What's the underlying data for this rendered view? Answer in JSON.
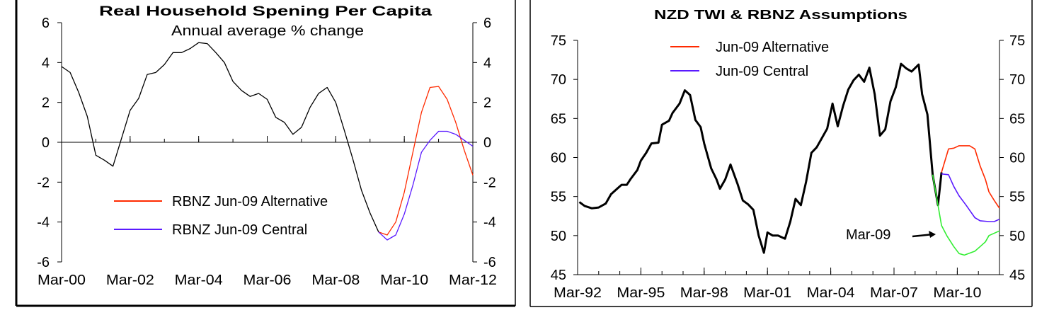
{
  "chart_data": [
    {
      "type": "line",
      "title": "Real Household Spening Per Capita",
      "subtitle": "Annual average % change",
      "xlim": [
        "2000-03",
        "2012-03"
      ],
      "ylim": [
        -6,
        6
      ],
      "y_ticks": [
        6,
        4,
        2,
        0,
        -2,
        -4,
        -6
      ],
      "y_tick_labels": [
        "6",
        "4",
        "2",
        "0",
        "-2",
        "-4",
        "-6"
      ],
      "secondary_y_ticks": [
        "6",
        "4",
        "2",
        "0",
        "-2",
        "-4",
        "-6"
      ],
      "x_ticks": [
        {
          "date": "2000-03",
          "label": "Mar-00"
        },
        {
          "date": "2002-03",
          "label": "Mar-02"
        },
        {
          "date": "2004-03",
          "label": "Mar-04"
        },
        {
          "date": "2006-03",
          "label": "Mar-06"
        },
        {
          "date": "2008-03",
          "label": "Mar-08"
        },
        {
          "date": "2010-03",
          "label": "Mar-10"
        },
        {
          "date": "2012-03",
          "label": "Mar-12"
        }
      ],
      "grid": false,
      "zero_line": true,
      "legend_position": "bottom-left",
      "series": [
        {
          "color": "#000000",
          "points": [
            [
              "2000-03",
              3.8
            ],
            [
              "2000-06",
              3.5
            ],
            [
              "2000-09",
              2.5
            ],
            [
              "2000-12",
              1.3
            ],
            [
              "2001-03",
              -0.65
            ],
            [
              "2001-06",
              -0.9
            ],
            [
              "2001-09",
              -1.2
            ],
            [
              "2001-12",
              0.2
            ],
            [
              "2002-03",
              1.6
            ],
            [
              "2002-06",
              2.2
            ],
            [
              "2002-09",
              3.4
            ],
            [
              "2002-12",
              3.5
            ],
            [
              "2003-03",
              3.9
            ],
            [
              "2003-06",
              4.5
            ],
            [
              "2003-09",
              4.5
            ],
            [
              "2003-12",
              4.7
            ],
            [
              "2004-03",
              5.0
            ],
            [
              "2004-06",
              4.95
            ],
            [
              "2004-09",
              4.5
            ],
            [
              "2004-12",
              4.0
            ],
            [
              "2005-03",
              3.05
            ],
            [
              "2005-06",
              2.6
            ],
            [
              "2005-09",
              2.3
            ],
            [
              "2005-12",
              2.45
            ],
            [
              "2006-03",
              2.15
            ],
            [
              "2006-06",
              1.25
            ],
            [
              "2006-09",
              1.0
            ],
            [
              "2006-12",
              0.4
            ],
            [
              "2007-03",
              0.75
            ],
            [
              "2007-06",
              1.75
            ],
            [
              "2007-09",
              2.45
            ],
            [
              "2007-12",
              2.75
            ],
            [
              "2008-03",
              2.0
            ],
            [
              "2008-06",
              0.6
            ],
            [
              "2008-09",
              -0.85
            ],
            [
              "2008-12",
              -2.4
            ],
            [
              "2009-03",
              -3.55
            ],
            [
              "2009-06",
              -4.5
            ]
          ]
        },
        {
          "name": "RBNZ Jun-09 Alternative",
          "color": "#ff2a00",
          "points": [
            [
              "2009-06",
              -4.5
            ],
            [
              "2009-09",
              -4.65
            ],
            [
              "2009-12",
              -4.0
            ],
            [
              "2010-03",
              -2.5
            ],
            [
              "2010-06",
              -0.5
            ],
            [
              "2010-09",
              1.5
            ],
            [
              "2010-12",
              2.75
            ],
            [
              "2011-03",
              2.8
            ],
            [
              "2011-06",
              2.15
            ],
            [
              "2011-09",
              1.0
            ],
            [
              "2011-12",
              -0.4
            ],
            [
              "2012-03",
              -1.65
            ]
          ]
        },
        {
          "name": "RBNZ Jun-09 Central",
          "color": "#5a1aff",
          "points": [
            [
              "2009-06",
              -4.5
            ],
            [
              "2009-09",
              -4.9
            ],
            [
              "2009-12",
              -4.65
            ],
            [
              "2010-03",
              -3.6
            ],
            [
              "2010-06",
              -2.15
            ],
            [
              "2010-09",
              -0.5
            ],
            [
              "2010-12",
              0.1
            ],
            [
              "2011-03",
              0.55
            ],
            [
              "2011-06",
              0.55
            ],
            [
              "2011-09",
              0.4
            ],
            [
              "2011-12",
              0.1
            ],
            [
              "2012-03",
              -0.2
            ]
          ]
        }
      ]
    },
    {
      "type": "line",
      "title": "NZD TWI & RBNZ Assumptions",
      "xlim": [
        "1992-03",
        "2012-03"
      ],
      "ylim": [
        45,
        75
      ],
      "y_ticks": [
        75,
        70,
        65,
        60,
        55,
        50,
        45
      ],
      "y_tick_labels": [
        "75",
        "70",
        "65",
        "60",
        "55",
        "50",
        "45"
      ],
      "secondary_y_ticks": [
        "75",
        "70",
        "65",
        "60",
        "55",
        "50",
        "45"
      ],
      "x_ticks": [
        {
          "date": "1992-03",
          "label": "Mar-92"
        },
        {
          "date": "1995-03",
          "label": "Mar-95"
        },
        {
          "date": "1998-03",
          "label": "Mar-98"
        },
        {
          "date": "2001-03",
          "label": "Mar-01"
        },
        {
          "date": "2004-03",
          "label": "Mar-04"
        },
        {
          "date": "2007-03",
          "label": "Mar-07"
        },
        {
          "date": "2010-03",
          "label": "Mar-10"
        }
      ],
      "grid": false,
      "legend_position": "top-left",
      "annotation": {
        "text": "Mar-09",
        "arrow": "right"
      },
      "series": [
        {
          "color": "#000000",
          "points": [
            [
              "1992-04",
              54.3
            ],
            [
              "1992-07",
              53.8
            ],
            [
              "1992-11",
              53.5
            ],
            [
              "1993-03",
              53.6
            ],
            [
              "1993-07",
              54.1
            ],
            [
              "1993-10",
              55.3
            ],
            [
              "1994-02",
              56.1
            ],
            [
              "1994-04",
              56.5
            ],
            [
              "1994-07",
              56.5
            ],
            [
              "1994-09",
              57.2
            ],
            [
              "1995-01",
              58.4
            ],
            [
              "1995-03",
              59.6
            ],
            [
              "1995-06",
              60.6
            ],
            [
              "1995-09",
              61.8
            ],
            [
              "1996-01",
              61.9
            ],
            [
              "1996-03",
              64.2
            ],
            [
              "1996-07",
              64.7
            ],
            [
              "1996-09",
              65.7
            ],
            [
              "1997-01",
              66.9
            ],
            [
              "1997-04",
              68.6
            ],
            [
              "1997-07",
              68.0
            ],
            [
              "1997-10",
              64.8
            ],
            [
              "1998-01",
              63.9
            ],
            [
              "1998-03",
              61.8
            ],
            [
              "1998-07",
              58.6
            ],
            [
              "1998-10",
              57.2
            ],
            [
              "1998-12",
              56.0
            ],
            [
              "1999-03",
              57.2
            ],
            [
              "1999-06",
              59.1
            ],
            [
              "1999-10",
              56.6
            ],
            [
              "2000-01",
              54.5
            ],
            [
              "2000-04",
              54.0
            ],
            [
              "2000-07",
              53.3
            ],
            [
              "2000-10",
              50.0
            ],
            [
              "2001-01",
              47.8
            ],
            [
              "2001-03",
              50.4
            ],
            [
              "2001-06",
              50.0
            ],
            [
              "2001-09",
              50.0
            ],
            [
              "2002-01",
              49.6
            ],
            [
              "2002-04",
              51.8
            ],
            [
              "2002-07",
              54.7
            ],
            [
              "2002-10",
              53.9
            ],
            [
              "2003-01",
              56.9
            ],
            [
              "2003-04",
              60.6
            ],
            [
              "2003-07",
              61.3
            ],
            [
              "2003-10",
              62.5
            ],
            [
              "2004-01",
              63.7
            ],
            [
              "2004-04",
              66.9
            ],
            [
              "2004-07",
              64.0
            ],
            [
              "2004-10",
              66.6
            ],
            [
              "2005-01",
              68.7
            ],
            [
              "2005-04",
              69.9
            ],
            [
              "2005-07",
              70.6
            ],
            [
              "2005-10",
              69.7
            ],
            [
              "2006-01",
              71.5
            ],
            [
              "2006-04",
              68.1
            ],
            [
              "2006-07",
              62.8
            ],
            [
              "2006-10",
              63.6
            ],
            [
              "2007-01",
              67.2
            ],
            [
              "2007-04",
              69.0
            ],
            [
              "2007-07",
              72.0
            ],
            [
              "2007-10",
              71.4
            ],
            [
              "2008-01",
              71.0
            ],
            [
              "2008-05",
              71.9
            ],
            [
              "2008-07",
              68.1
            ],
            [
              "2008-10",
              65.5
            ],
            [
              "2009-01",
              57.8
            ],
            [
              "2009-04",
              53.9
            ],
            [
              "2009-06",
              58.1
            ]
          ]
        },
        {
          "name": "Jun-09 Alternative",
          "color": "#ff2a00",
          "points": [
            [
              "2009-06",
              58.1
            ],
            [
              "2009-10",
              61.1
            ],
            [
              "2010-01",
              61.2
            ],
            [
              "2010-04",
              61.5
            ],
            [
              "2010-10",
              61.5
            ],
            [
              "2011-01",
              61.1
            ],
            [
              "2011-04",
              58.9
            ],
            [
              "2011-07",
              57.2
            ],
            [
              "2011-09",
              55.6
            ],
            [
              "2011-12",
              54.5
            ],
            [
              "2012-03",
              53.5
            ]
          ]
        },
        {
          "name": "Jun-09 Central",
          "color": "#5a1aff",
          "points": [
            [
              "2009-06",
              57.9
            ],
            [
              "2009-10",
              57.8
            ],
            [
              "2010-01",
              56.3
            ],
            [
              "2010-04",
              55.1
            ],
            [
              "2010-08",
              53.9
            ],
            [
              "2011-01",
              52.3
            ],
            [
              "2011-04",
              51.9
            ],
            [
              "2011-09",
              51.8
            ],
            [
              "2011-12",
              51.8
            ],
            [
              "2012-03",
              52.1
            ]
          ]
        },
        {
          "color": "#33ee33",
          "points": [
            [
              "2009-01",
              57.8
            ],
            [
              "2009-04",
              53.9
            ],
            [
              "2009-06",
              51.3
            ],
            [
              "2009-09",
              50.0
            ],
            [
              "2010-01",
              48.6
            ],
            [
              "2010-04",
              47.7
            ],
            [
              "2010-07",
              47.5
            ],
            [
              "2011-01",
              48.0
            ],
            [
              "2011-04",
              48.6
            ],
            [
              "2011-07",
              49.2
            ],
            [
              "2011-09",
              50.0
            ],
            [
              "2012-03",
              50.6
            ]
          ]
        }
      ]
    }
  ]
}
